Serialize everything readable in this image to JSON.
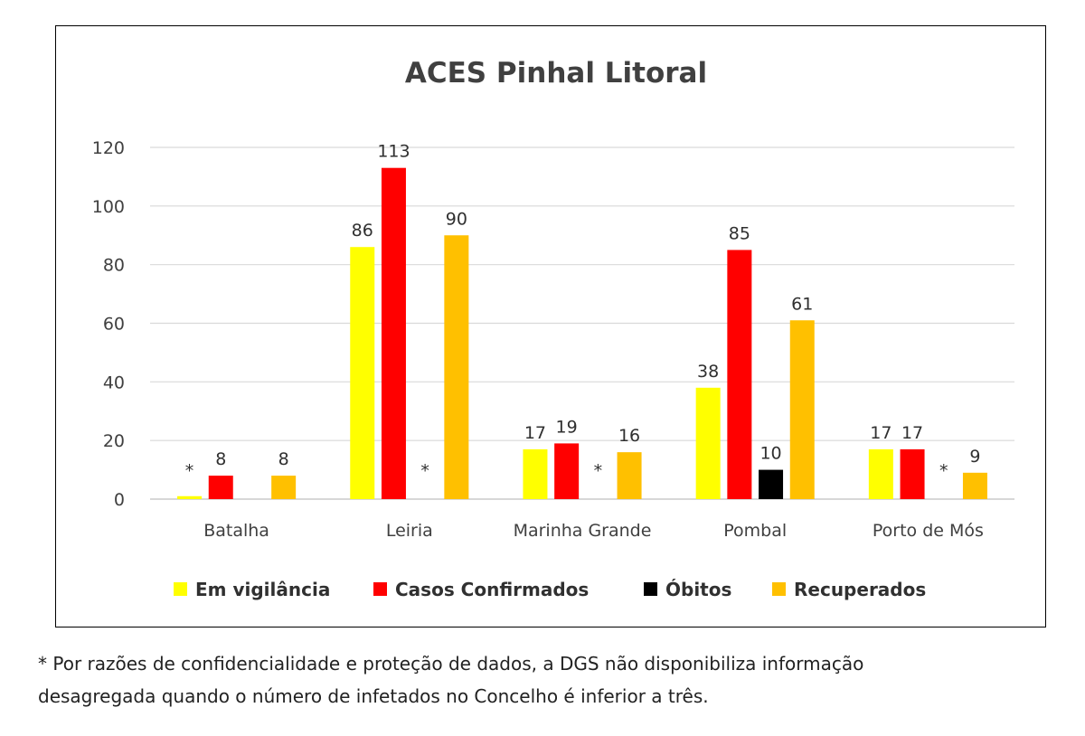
{
  "chart_data": {
    "type": "bar",
    "title": "ACES Pinhal Litoral",
    "xlabel": "",
    "ylabel": "",
    "ylim": [
      0,
      120
    ],
    "yticks": [
      0,
      20,
      40,
      60,
      80,
      100,
      120
    ],
    "grid": true,
    "legend_position": "bottom",
    "categories": [
      "Batalha",
      "Leiria",
      "Marinha Grande",
      "Pombal",
      "Porto de Mós"
    ],
    "series": [
      {
        "name": "Em vigilância",
        "color": "#FFFF00",
        "values": [
          1,
          86,
          17,
          38,
          17
        ],
        "labels": [
          "*",
          "86",
          "17",
          "38",
          "17"
        ]
      },
      {
        "name": "Casos Confirmados",
        "color": "#FF0000",
        "values": [
          8,
          113,
          19,
          85,
          17
        ],
        "labels": [
          "8",
          "113",
          "19",
          "85",
          "17"
        ]
      },
      {
        "name": "Óbitos",
        "color": "#000000",
        "values": [
          null,
          null,
          null,
          10,
          null
        ],
        "labels": [
          "",
          "*",
          "*",
          "10",
          "*"
        ]
      },
      {
        "name": "Recuperados",
        "color": "#FFC000",
        "values": [
          8,
          90,
          16,
          61,
          9
        ],
        "labels": [
          "8",
          "90",
          "16",
          "61",
          "9"
        ]
      }
    ]
  },
  "footnote": {
    "line1": "* Por razões de confidencialidade e proteção de dados, a DGS não disponibiliza informação",
    "line2": "desagregada quando o número de infetados no Concelho é inferior a três."
  }
}
